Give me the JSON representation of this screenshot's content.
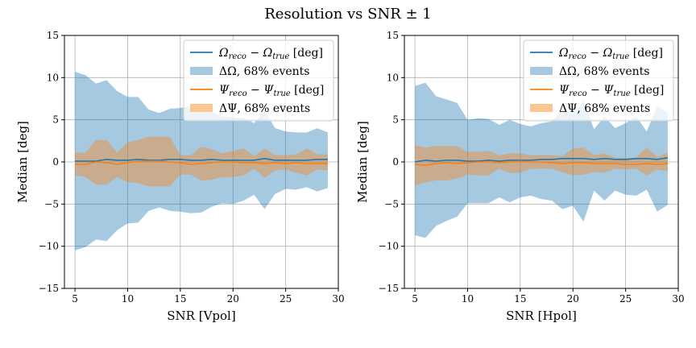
{
  "figure": {
    "title": "Resolution vs SNR ± 1"
  },
  "legend_labels": [
    {
      "sym": "Ω",
      "sub1": "reco",
      "sub2": "true",
      "unit": " [deg]"
    },
    {
      "sym": "ΔΩ",
      "text": ", 68% events"
    },
    {
      "sym": "Ψ",
      "sub1": "reco",
      "sub2": "true",
      "unit": " [deg]"
    },
    {
      "sym": "ΔΨ",
      "text": ", 68% events"
    }
  ],
  "colors": {
    "omega_line": "#1f77b4",
    "omega_band": "#a6c8e0",
    "psi_line": "#ff7f0e",
    "psi_band": "#fcc690",
    "overlap_band": "#d6b28f",
    "grid": "#b0b0b0"
  },
  "chart_data": [
    {
      "type": "area",
      "xlabel": "SNR [Vpol]",
      "ylabel": "Median [deg]",
      "xlim": [
        4,
        30
      ],
      "ylim": [
        -15,
        15
      ],
      "xticks": [
        5,
        10,
        15,
        20,
        25,
        30
      ],
      "yticks": [
        -15,
        -10,
        -5,
        0,
        5,
        10,
        15
      ],
      "grid": true,
      "legend": "upper-right",
      "x": [
        5,
        6,
        7,
        8,
        9,
        10,
        11,
        12,
        13,
        14,
        15,
        16,
        17,
        18,
        19,
        20,
        21,
        22,
        23,
        24,
        25,
        26,
        27,
        28,
        29
      ],
      "series": [
        {
          "name": "omega_median",
          "values": [
            0.1,
            0.1,
            0.1,
            0.3,
            0.2,
            0.2,
            0.3,
            0.2,
            0.2,
            0.3,
            0.3,
            0.2,
            0.2,
            0.3,
            0.2,
            0.2,
            0.2,
            0.2,
            0.4,
            0.2,
            0.2,
            0.2,
            0.2,
            0.3,
            0.3
          ]
        },
        {
          "name": "omega_band",
          "upper": [
            10.7,
            10.3,
            9.3,
            9.7,
            8.4,
            7.7,
            7.7,
            6.2,
            5.8,
            6.3,
            6.4,
            6.6,
            6.1,
            5.9,
            5.4,
            5.3,
            5.2,
            4.6,
            6.1,
            4.0,
            3.6,
            3.5,
            3.5,
            4.0,
            3.5
          ],
          "lower": [
            -10.5,
            -10.1,
            -9.2,
            -9.4,
            -8.1,
            -7.3,
            -7.2,
            -5.8,
            -5.4,
            -5.8,
            -5.9,
            -6.1,
            -6.0,
            -5.3,
            -4.9,
            -5.0,
            -4.6,
            -3.9,
            -5.6,
            -3.8,
            -3.2,
            -3.3,
            -3.0,
            -3.5,
            -3.1
          ]
        },
        {
          "name": "psi_median",
          "values": [
            -0.3,
            -0.3,
            0.0,
            -0.1,
            -0.3,
            -0.1,
            0.1,
            0.1,
            0.1,
            0.0,
            -0.1,
            -0.3,
            -0.2,
            -0.1,
            0.0,
            0.0,
            -0.1,
            -0.1,
            -0.2,
            -0.1,
            -0.2,
            -0.1,
            -0.2,
            -0.2,
            -0.2
          ]
        },
        {
          "name": "psi_band",
          "upper": [
            1.1,
            1.1,
            2.6,
            2.6,
            1.1,
            2.3,
            2.6,
            3.0,
            3.0,
            3.0,
            0.8,
            0.8,
            1.8,
            1.5,
            1.0,
            1.3,
            1.6,
            0.7,
            1.6,
            0.8,
            0.8,
            0.9,
            1.6,
            0.9,
            0.9
          ],
          "lower": [
            -1.6,
            -1.8,
            -2.7,
            -2.7,
            -1.8,
            -2.4,
            -2.5,
            -2.9,
            -2.9,
            -2.9,
            -1.5,
            -1.5,
            -2.2,
            -2.1,
            -1.8,
            -1.8,
            -1.6,
            -0.8,
            -1.9,
            -1.0,
            -0.9,
            -1.3,
            -1.6,
            -0.9,
            -1.0
          ]
        }
      ]
    },
    {
      "type": "area",
      "xlabel": "SNR [Hpol]",
      "ylabel": "Median [deg]",
      "xlim": [
        4,
        30
      ],
      "ylim": [
        -15,
        15
      ],
      "xticks": [
        5,
        10,
        15,
        20,
        25,
        30
      ],
      "yticks": [
        -15,
        -10,
        -5,
        0,
        5,
        10,
        15
      ],
      "grid": true,
      "legend": "upper-right",
      "x": [
        5,
        6,
        7,
        8,
        9,
        10,
        11,
        12,
        13,
        14,
        15,
        16,
        17,
        18,
        19,
        20,
        21,
        22,
        23,
        24,
        25,
        26,
        27,
        28,
        29
      ],
      "series": [
        {
          "name": "omega_median",
          "values": [
            0.0,
            0.2,
            0.1,
            0.2,
            0.2,
            0.1,
            0.1,
            0.2,
            0.1,
            0.2,
            0.2,
            0.2,
            0.3,
            0.3,
            0.4,
            0.4,
            0.4,
            0.3,
            0.4,
            0.3,
            0.3,
            0.4,
            0.4,
            0.3,
            0.5
          ]
        },
        {
          "name": "omega_band",
          "upper": [
            9.0,
            9.4,
            7.8,
            7.4,
            7.0,
            5.0,
            5.2,
            5.1,
            4.4,
            5.0,
            4.5,
            4.2,
            4.6,
            4.8,
            6.3,
            5.6,
            7.2,
            3.9,
            5.4,
            4.0,
            4.6,
            5.4,
            3.6,
            6.6,
            5.8
          ],
          "lower": [
            -8.7,
            -9.0,
            -7.6,
            -7.0,
            -6.5,
            -4.9,
            -4.9,
            -4.9,
            -4.2,
            -4.8,
            -4.2,
            -4.0,
            -4.4,
            -4.6,
            -5.6,
            -5.2,
            -7.1,
            -3.4,
            -4.6,
            -3.4,
            -3.9,
            -4.0,
            -3.3,
            -5.9,
            -5.1
          ]
        },
        {
          "name": "psi_median",
          "values": [
            -0.3,
            -0.4,
            -0.2,
            -0.1,
            -0.2,
            -0.1,
            0.0,
            0.0,
            -0.1,
            0.0,
            0.1,
            0.0,
            0.0,
            -0.1,
            -0.2,
            -0.1,
            -0.1,
            -0.2,
            -0.2,
            -0.2,
            -0.3,
            -0.3,
            -0.2,
            -0.3,
            -0.2
          ]
        },
        {
          "name": "psi_band",
          "upper": [
            2.0,
            1.7,
            1.9,
            1.9,
            1.9,
            1.2,
            1.2,
            1.3,
            0.8,
            1.0,
            1.0,
            0.8,
            0.8,
            0.8,
            0.7,
            1.6,
            1.7,
            0.8,
            1.0,
            0.5,
            0.5,
            0.5,
            1.7,
            0.6,
            1.1
          ],
          "lower": [
            -2.8,
            -2.4,
            -2.2,
            -2.2,
            -2.0,
            -1.5,
            -1.6,
            -1.6,
            -0.8,
            -1.3,
            -1.3,
            -0.8,
            -0.8,
            -0.8,
            -1.2,
            -1.6,
            -1.5,
            -1.2,
            -1.3,
            -0.8,
            -0.9,
            -0.8,
            -1.6,
            -0.9,
            -1.1
          ]
        }
      ]
    }
  ]
}
